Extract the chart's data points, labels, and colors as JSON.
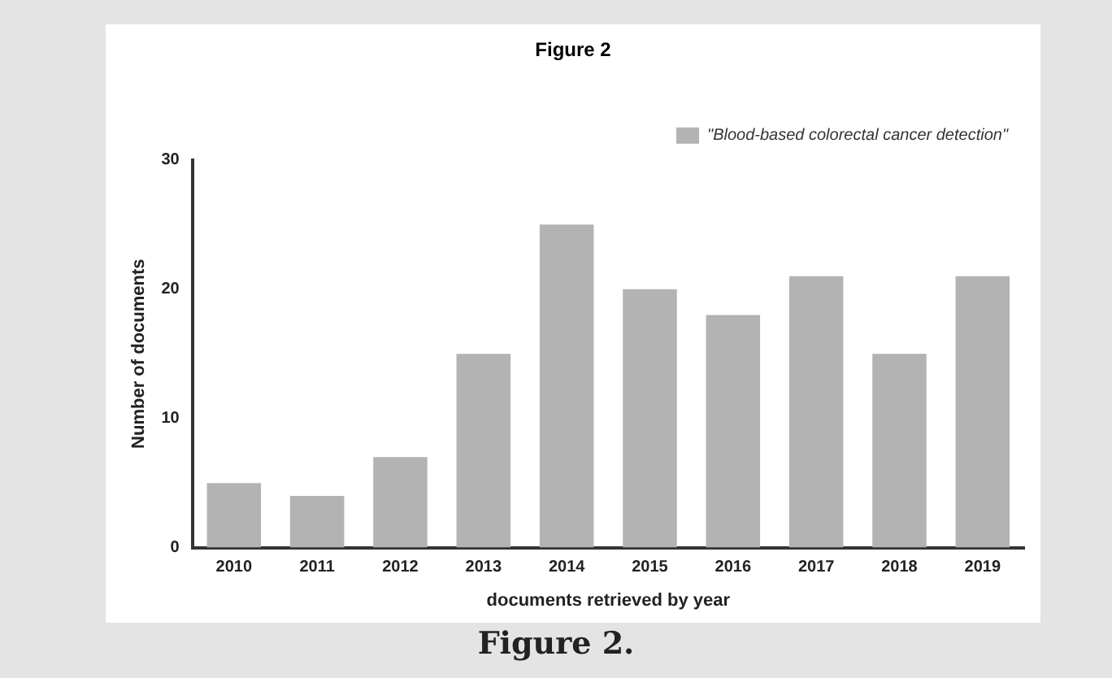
{
  "chart_data": {
    "type": "bar",
    "title": "Figure 2",
    "xlabel": "documents retrieved by year",
    "ylabel": "Number of documents",
    "categories": [
      "2010",
      "2011",
      "2012",
      "2013",
      "2014",
      "2015",
      "2016",
      "2017",
      "2018",
      "2019"
    ],
    "series": [
      {
        "name": "\"Blood-based colorectal cancer detection\"",
        "color": "#b3b3b3",
        "values": [
          5,
          4,
          7,
          15,
          25,
          20,
          18,
          21,
          15,
          21
        ]
      }
    ],
    "ylim": [
      0,
      30
    ],
    "yticks": [
      0,
      10,
      20,
      30
    ],
    "grid": false,
    "legend": "top right",
    "annotations": [
      "Figure 2."
    ]
  }
}
